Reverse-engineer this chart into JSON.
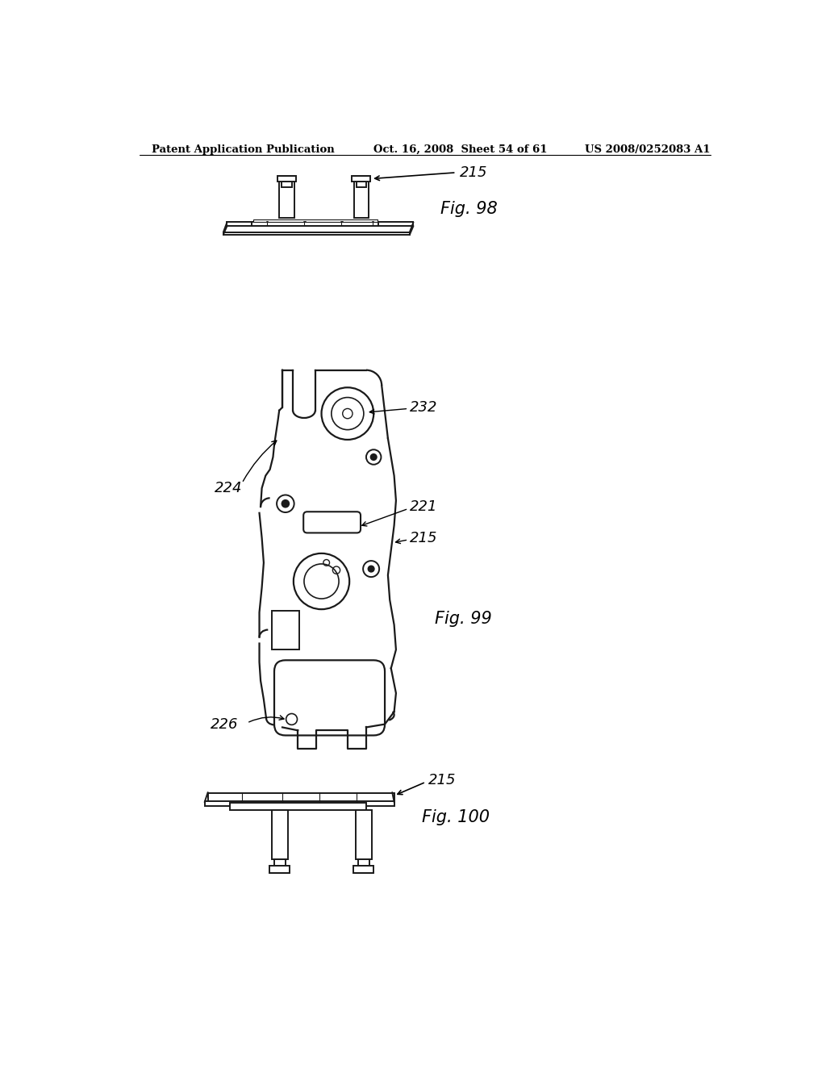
{
  "background_color": "#ffffff",
  "header_left": "Patent Application Publication",
  "header_mid": "Oct. 16, 2008  Sheet 54 of 61",
  "header_right": "US 2008/0252083 A1",
  "fig98_label": "Fig. 98",
  "fig99_label": "Fig. 99",
  "fig100_label": "Fig. 100",
  "label_215_fig98": "215",
  "label_215_fig99": "215",
  "label_215_fig100": "215",
  "label_224": "224",
  "label_232": "232",
  "label_221": "221",
  "label_226": "226",
  "line_color": "#1a1a1a",
  "line_width": 1.4,
  "annotation_fontsize": 12,
  "header_fontsize": 10
}
